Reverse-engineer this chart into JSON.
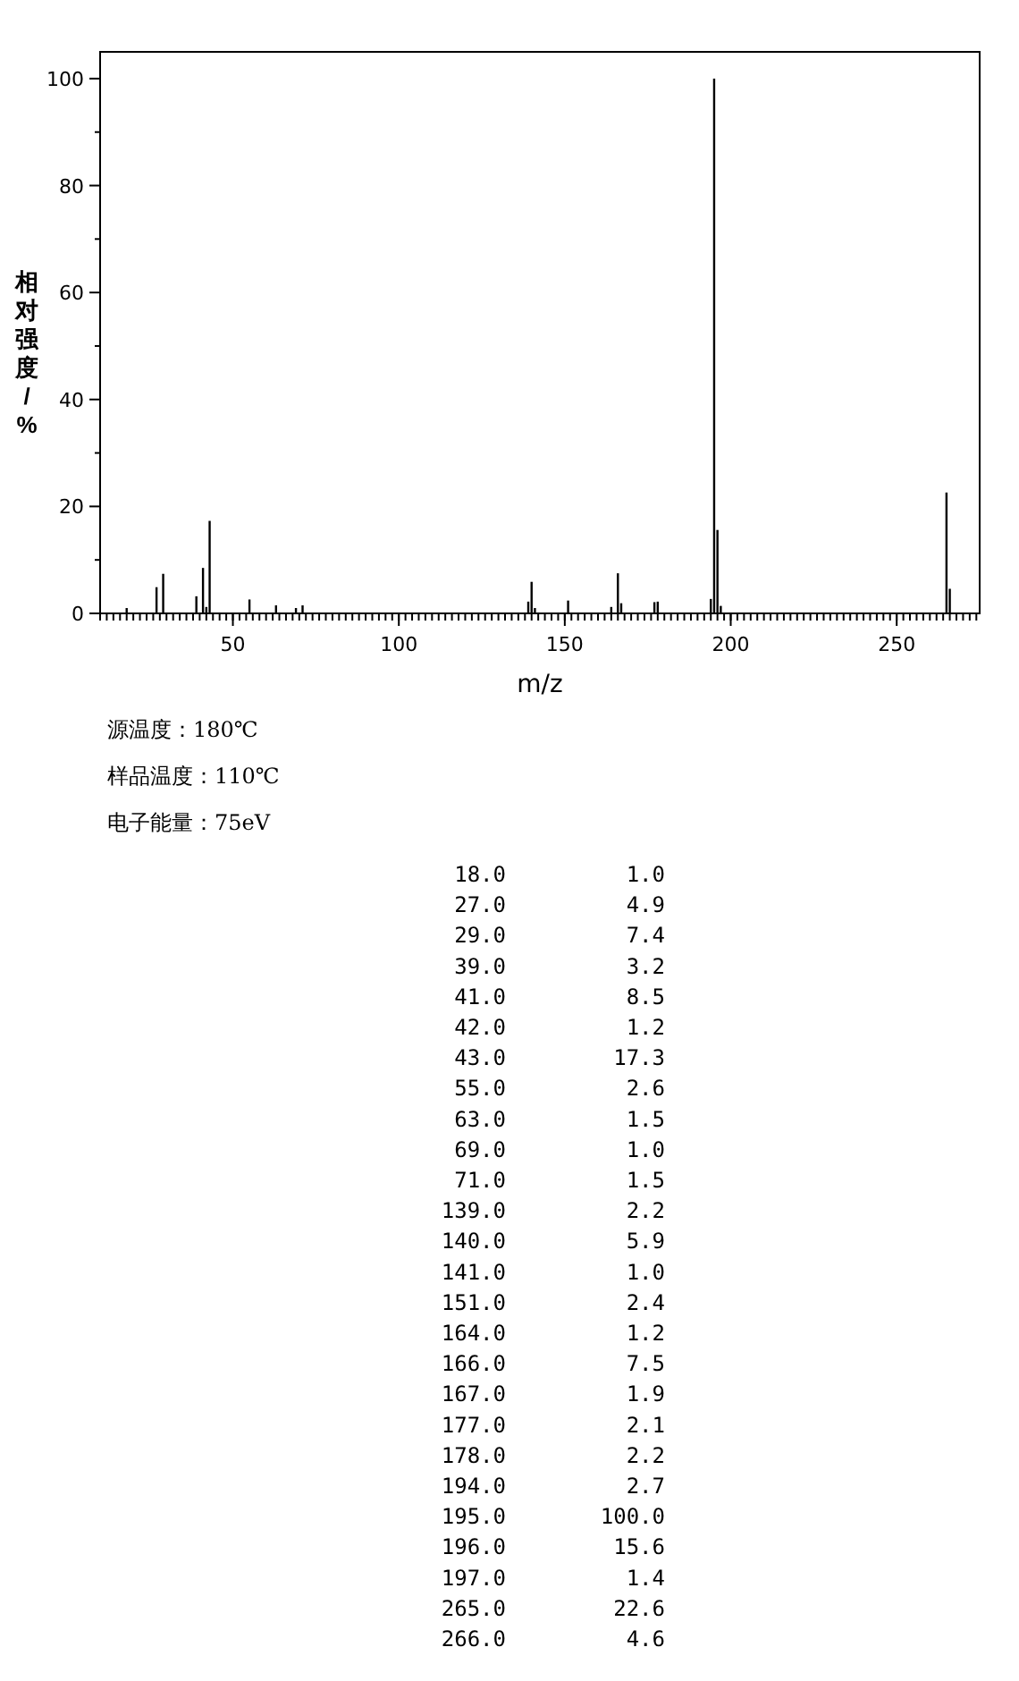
{
  "chart_data": [
    {
      "type": "bar",
      "xlabel": "m/z",
      "ylabel": "相对强度/%",
      "x": [
        18,
        27,
        29,
        39,
        41,
        42,
        43,
        55,
        63,
        69,
        71,
        139,
        140,
        141,
        151,
        164,
        166,
        167,
        177,
        178,
        194,
        195,
        196,
        197,
        265,
        266
      ],
      "values": [
        1.0,
        4.9,
        7.4,
        3.2,
        8.5,
        1.2,
        17.3,
        2.6,
        1.5,
        1.0,
        1.5,
        2.2,
        5.9,
        1.0,
        2.4,
        1.2,
        7.5,
        1.9,
        2.1,
        2.2,
        2.7,
        100.0,
        15.6,
        1.4,
        22.6,
        4.6
      ],
      "color": "#000000",
      "xlim": [
        10,
        275
      ],
      "xticks": [
        50,
        100,
        150,
        200,
        250
      ],
      "ylim": [
        0,
        105
      ],
      "yticks": [
        0,
        20,
        40,
        60,
        80,
        100
      ],
      "annotations": [
        "源温度：180℃",
        "样品温度：110℃",
        "电子能量：75eV"
      ]
    },
    {
      "type": "other",
      "categories": [
        "18.0",
        "27.0",
        "29.0",
        "39.0",
        "41.0",
        "42.0",
        "43.0",
        "55.0",
        "63.0",
        "69.0",
        "71.0",
        "139.0",
        "140.0",
        "141.0",
        "151.0",
        "164.0",
        "166.0",
        "167.0",
        "177.0",
        "178.0",
        "194.0",
        "195.0",
        "196.0",
        "197.0",
        "265.0",
        "266.0"
      ],
      "values": [
        1.0,
        4.9,
        7.4,
        3.2,
        8.5,
        1.2,
        17.3,
        2.6,
        1.5,
        1.0,
        1.5,
        2.2,
        5.9,
        1.0,
        2.4,
        1.2,
        7.5,
        1.9,
        2.1,
        2.2,
        2.7,
        100.0,
        15.6,
        1.4,
        22.6,
        4.6
      ],
      "value_labels": [
        "1.0",
        "4.9",
        "7.4",
        "3.2",
        "8.5",
        "1.2",
        "17.3",
        "2.6",
        "1.5",
        "1.0",
        "1.5",
        "2.2",
        "5.9",
        "1.0",
        "2.4",
        "1.2",
        "7.5",
        "1.9",
        "2.1",
        "2.2",
        "2.7",
        "100.0",
        "15.6",
        "1.4",
        "22.6",
        "4.6"
      ]
    }
  ]
}
